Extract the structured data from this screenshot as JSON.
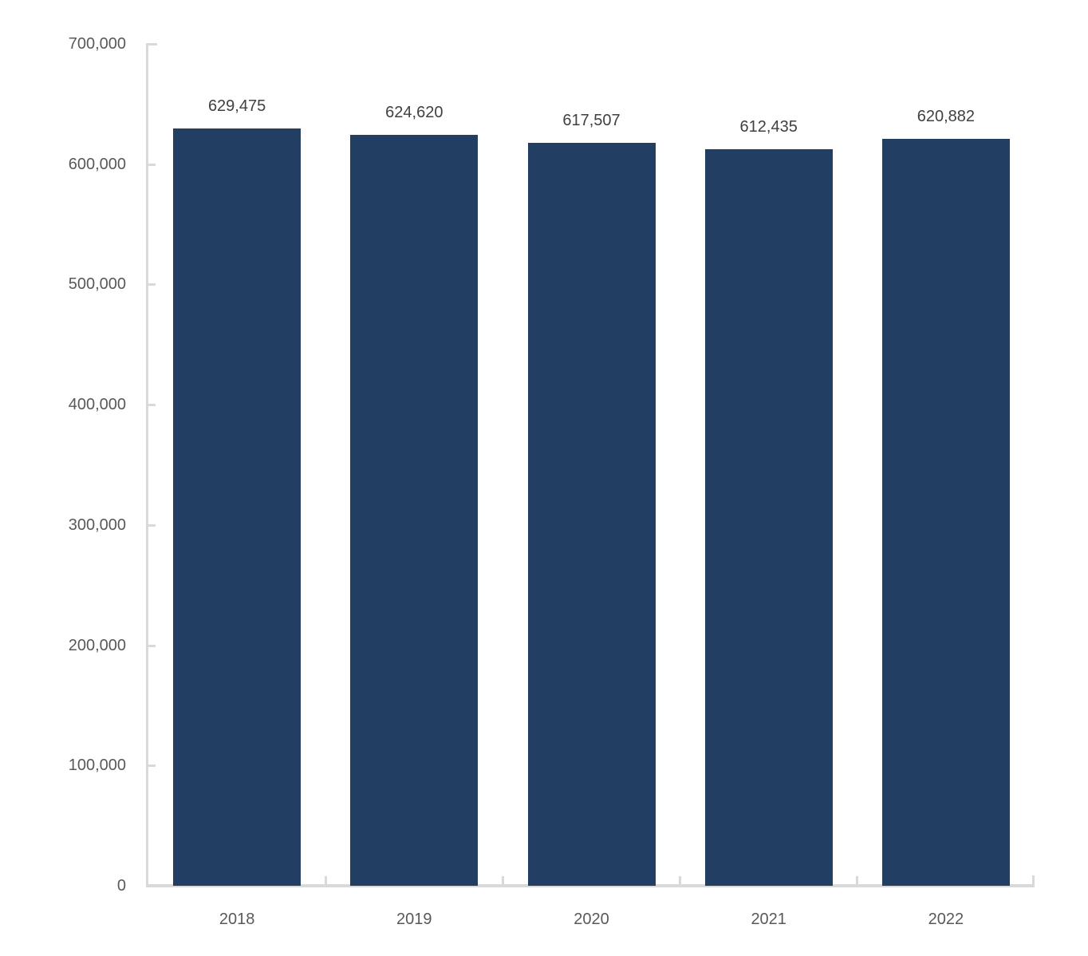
{
  "chart_data": {
    "type": "bar",
    "title": "",
    "xlabel": "",
    "ylabel": "",
    "categories": [
      "2018",
      "2019",
      "2020",
      "2021",
      "2022"
    ],
    "values": [
      629475,
      624620,
      617507,
      612435,
      620882
    ],
    "value_labels": [
      "629,475",
      "624,620",
      "617,507",
      "612,435",
      "620,882"
    ],
    "ylim": [
      0,
      700000
    ],
    "y_tick_step": 100000,
    "y_ticks": [
      {
        "value": 0,
        "label": "0"
      },
      {
        "value": 100000,
        "label": "100,000"
      },
      {
        "value": 200000,
        "label": "200,000"
      },
      {
        "value": 300000,
        "label": "300,000"
      },
      {
        "value": 400000,
        "label": "400,000"
      },
      {
        "value": 500000,
        "label": "500,000"
      },
      {
        "value": 600000,
        "label": "600,000"
      },
      {
        "value": 700000,
        "label": "700,000"
      }
    ],
    "grid": false,
    "legend": false,
    "data_labels": true,
    "tick_marks": "inside",
    "colors": {
      "bar": "#233e63",
      "axis": "#d9d9d9",
      "axis_tick_label": "#595959",
      "data_label": "#404040",
      "background": "#ffffff"
    }
  }
}
